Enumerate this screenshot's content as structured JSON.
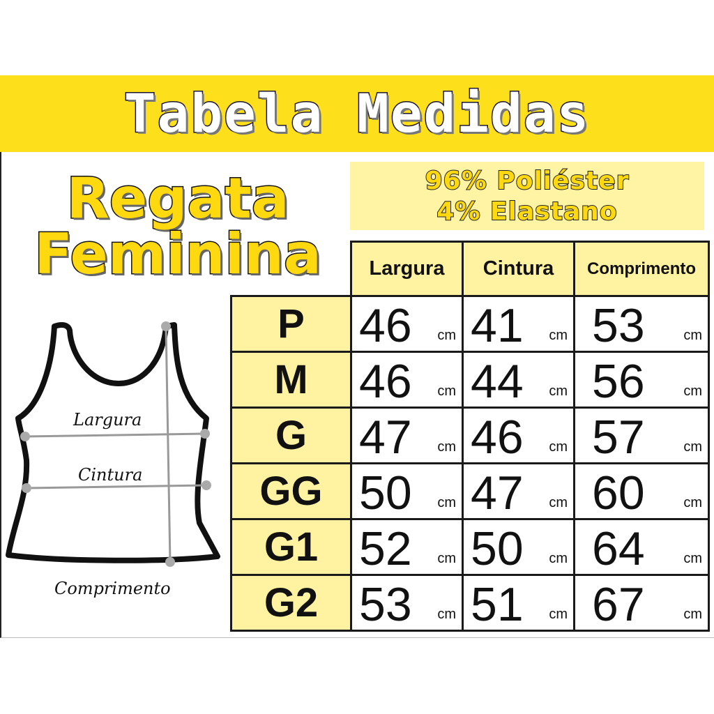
{
  "header": {
    "title": "Tabela Medidas"
  },
  "product": {
    "line1": "Regata",
    "line2": "Feminina"
  },
  "fabric": {
    "line1": "96% Poliéster",
    "line2": "4% Elastano"
  },
  "diagram": {
    "labels": {
      "width": "Largura",
      "waist": "Cintura",
      "length": "Comprimento"
    }
  },
  "table": {
    "columns": [
      "Largura",
      "Cintura",
      "Comprimento"
    ],
    "unit": "cm",
    "rows": [
      {
        "size": "P",
        "values": [
          "46",
          "41",
          "53"
        ]
      },
      {
        "size": "M",
        "values": [
          "46",
          "44",
          "56"
        ]
      },
      {
        "size": "G",
        "values": [
          "47",
          "46",
          "57"
        ]
      },
      {
        "size": "GG",
        "values": [
          "50",
          "47",
          "60"
        ]
      },
      {
        "size": "G1",
        "values": [
          "52",
          "50",
          "64"
        ]
      },
      {
        "size": "G2",
        "values": [
          "53",
          "51",
          "67"
        ]
      }
    ]
  },
  "colors": {
    "band": "#FDDF1C",
    "cell_highlight": "#FFF2A0",
    "fabric_box": "#FFF4A3"
  }
}
